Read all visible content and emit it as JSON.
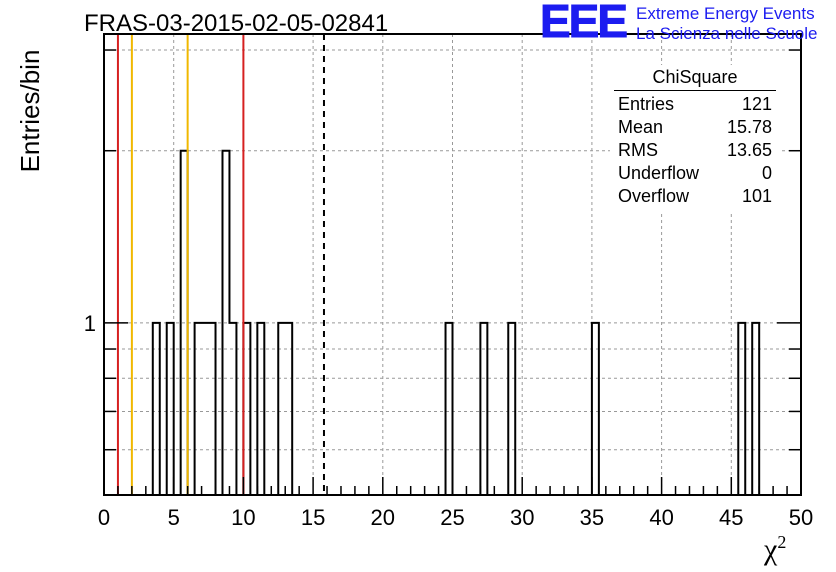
{
  "chart_data": {
    "type": "bar",
    "title": "FRAS-03-2015-02-05-02841",
    "xlabel": "χ",
    "xlabel_superscript": "2",
    "ylabel": "Entries/bin",
    "xlim": [
      0,
      50
    ],
    "ylim": [
      0.5,
      3.2
    ],
    "y_log_scale": true,
    "bin_width": 0.5,
    "grid": true,
    "x_ticks": [
      "0",
      "5",
      "10",
      "15",
      "20",
      "25",
      "30",
      "35",
      "40",
      "45",
      "50"
    ],
    "y_tick_label": "1",
    "bins": [
      {
        "x": 3.5,
        "count": 1
      },
      {
        "x": 4.5,
        "count": 1
      },
      {
        "x": 5.5,
        "count": 2
      },
      {
        "x": 6.5,
        "count": 1
      },
      {
        "x": 7.0,
        "count": 1
      },
      {
        "x": 7.5,
        "count": 1
      },
      {
        "x": 8.5,
        "count": 2
      },
      {
        "x": 9.0,
        "count": 1
      },
      {
        "x": 10.0,
        "count": 1
      },
      {
        "x": 11.0,
        "count": 1
      },
      {
        "x": 12.5,
        "count": 1
      },
      {
        "x": 13.0,
        "count": 1
      },
      {
        "x": 24.5,
        "count": 1
      },
      {
        "x": 27.0,
        "count": 1
      },
      {
        "x": 29.0,
        "count": 1
      },
      {
        "x": 35.0,
        "count": 1
      },
      {
        "x": 45.5,
        "count": 1
      },
      {
        "x": 46.5,
        "count": 1
      }
    ],
    "vertical_lines": [
      {
        "x": 1.0,
        "color": "#d62020",
        "style": "solid"
      },
      {
        "x": 2.0,
        "color": "#f0b800",
        "style": "solid"
      },
      {
        "x": 6.0,
        "color": "#f0b800",
        "style": "solid"
      },
      {
        "x": 10.0,
        "color": "#d62020",
        "style": "solid"
      },
      {
        "x": 15.78,
        "color": "#000000",
        "style": "dashed"
      }
    ],
    "stats": {
      "title": "ChiSquare",
      "rows": [
        {
          "label": "Entries",
          "value": "121"
        },
        {
          "label": "Mean",
          "value": "15.78"
        },
        {
          "label": "RMS",
          "value": "13.65"
        },
        {
          "label": "Underflow",
          "value": "0"
        },
        {
          "label": "Overflow",
          "value": "101"
        }
      ]
    }
  },
  "logo": {
    "mark": "EEE",
    "line1": "Extreme Energy Events",
    "line2": "La Scienza nelle Scuole",
    "color": "#1c1cf0"
  }
}
